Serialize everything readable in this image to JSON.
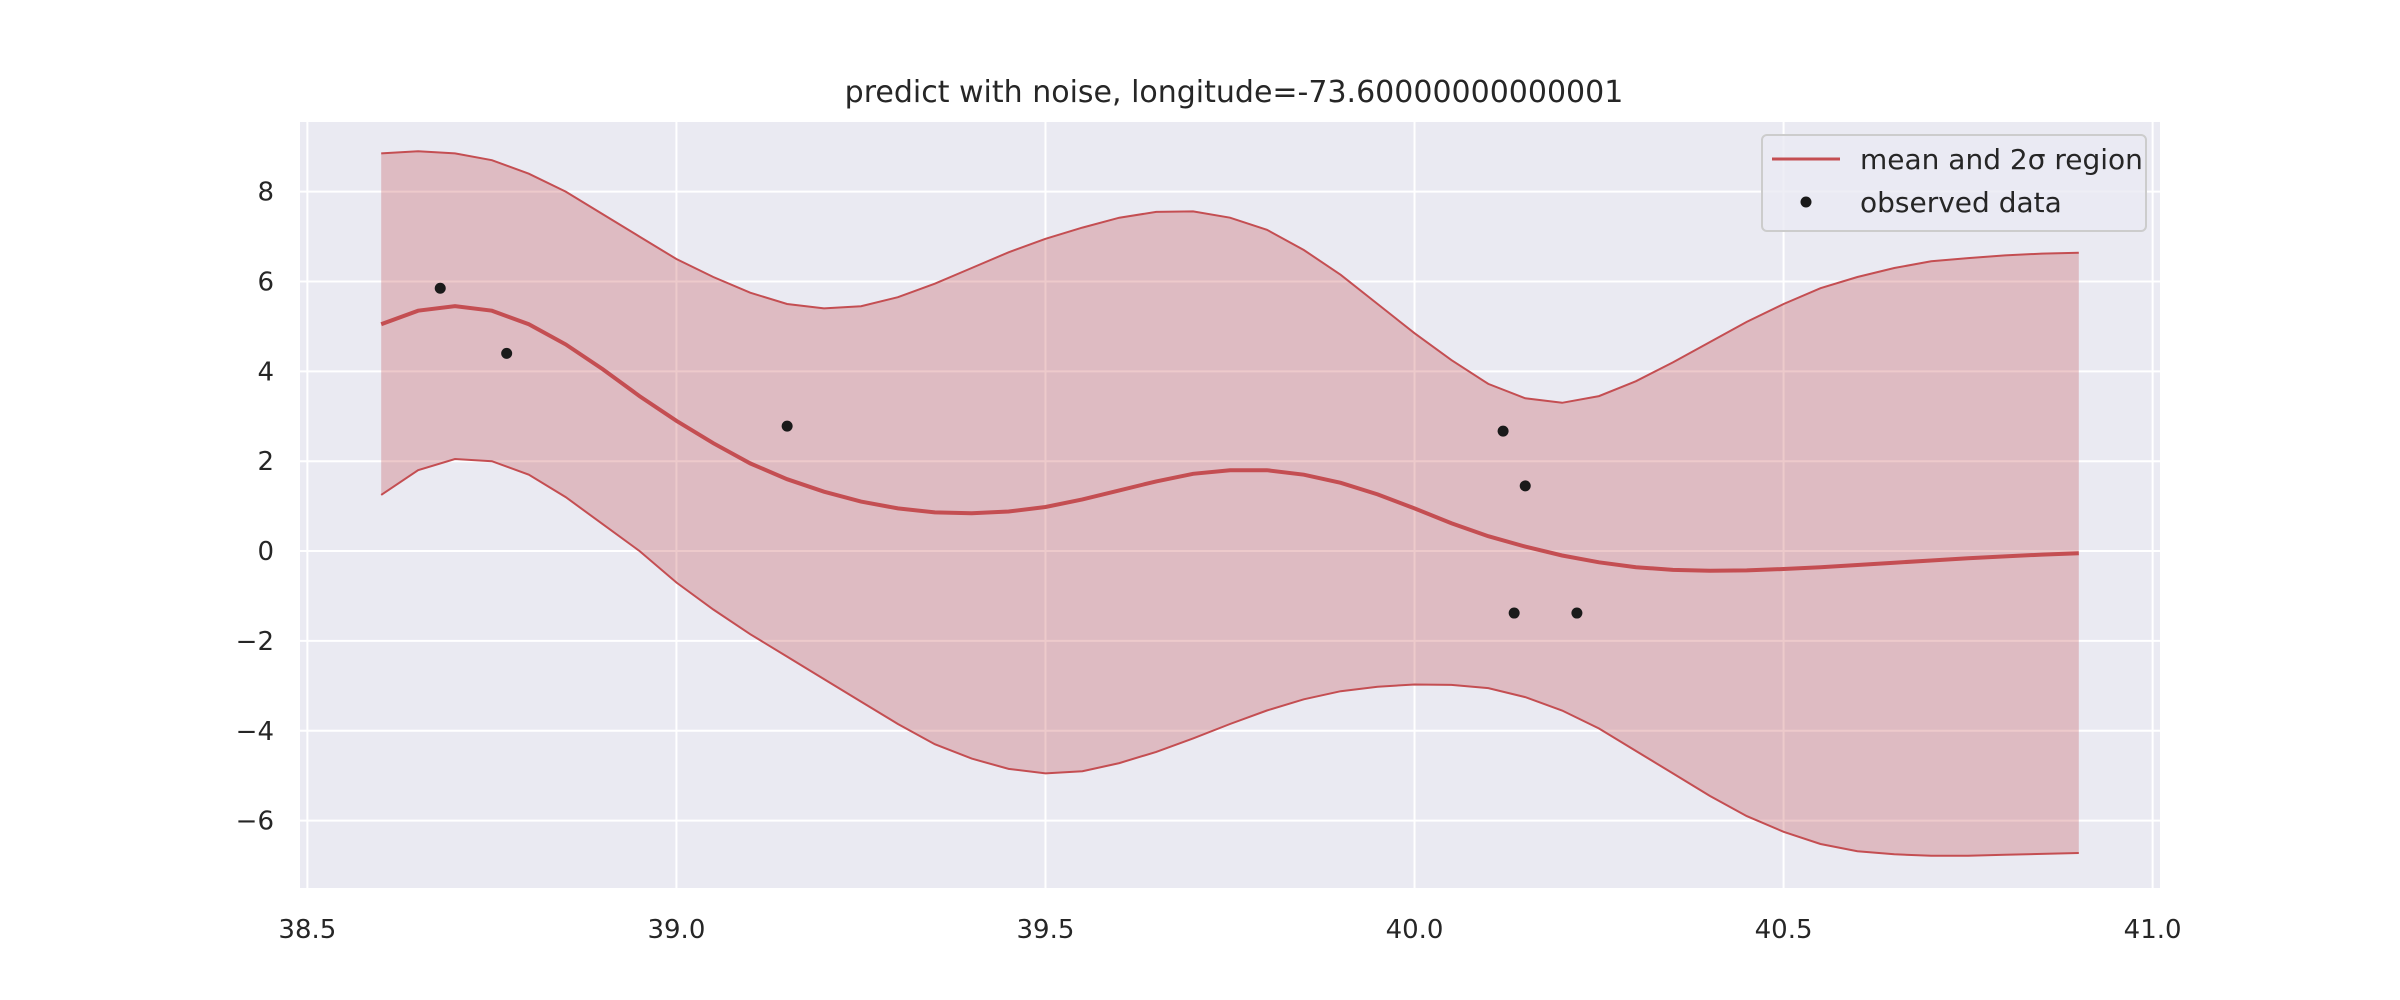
{
  "chart_data": {
    "type": "line",
    "title": "predict with noise, longitude=-73.60000000000001",
    "xlabel": "",
    "ylabel": "",
    "xlim": [
      38.49,
      41.01
    ],
    "ylim": [
      -7.5,
      9.55
    ],
    "x_ticks": [
      38.5,
      39.0,
      39.5,
      40.0,
      40.5,
      41.0
    ],
    "x_tick_labels": [
      "38.5",
      "39.0",
      "39.5",
      "40.0",
      "40.5",
      "41.0"
    ],
    "y_ticks": [
      -6,
      -4,
      -2,
      0,
      2,
      4,
      6,
      8
    ],
    "y_tick_labels": [
      "−6",
      "−4",
      "−2",
      "0",
      "2",
      "4",
      "6",
      "8"
    ],
    "grid": true,
    "legend_position": "top-right",
    "legend": [
      "mean and 2σ region",
      "observed data"
    ],
    "colors": {
      "mean": "#c44e52",
      "band_fill": "#c44e52",
      "band_alpha": 0.3,
      "points": "#1a1a1a",
      "axes_bg": "#eaeaf2",
      "grid": "#ffffff"
    },
    "series": [
      {
        "name": "mean and 2σ region",
        "kind": "line_with_band",
        "x": [
          38.6,
          38.65,
          38.7,
          38.75,
          38.8,
          38.85,
          38.9,
          38.95,
          39.0,
          39.05,
          39.1,
          39.15,
          39.2,
          39.25,
          39.3,
          39.35,
          39.4,
          39.45,
          39.5,
          39.55,
          39.6,
          39.65,
          39.7,
          39.75,
          39.8,
          39.85,
          39.9,
          39.95,
          40.0,
          40.05,
          40.1,
          40.15,
          40.2,
          40.25,
          40.3,
          40.35,
          40.4,
          40.45,
          40.5,
          40.55,
          40.6,
          40.65,
          40.7,
          40.75,
          40.8,
          40.85,
          40.9
        ],
        "mean": [
          5.05,
          5.35,
          5.45,
          5.35,
          5.05,
          4.6,
          4.05,
          3.45,
          2.9,
          2.4,
          1.95,
          1.6,
          1.32,
          1.1,
          0.95,
          0.86,
          0.84,
          0.88,
          0.98,
          1.15,
          1.35,
          1.55,
          1.72,
          1.8,
          1.8,
          1.7,
          1.52,
          1.26,
          0.95,
          0.62,
          0.33,
          0.1,
          -0.1,
          -0.25,
          -0.36,
          -0.42,
          -0.44,
          -0.43,
          -0.4,
          -0.36,
          -0.31,
          -0.26,
          -0.21,
          -0.16,
          -0.12,
          -0.08,
          -0.05
        ],
        "upper": [
          8.85,
          8.9,
          8.85,
          8.7,
          8.4,
          8.0,
          7.5,
          7.0,
          6.5,
          6.1,
          5.75,
          5.5,
          5.4,
          5.45,
          5.65,
          5.95,
          6.3,
          6.65,
          6.95,
          7.2,
          7.42,
          7.55,
          7.56,
          7.42,
          7.15,
          6.7,
          6.15,
          5.5,
          4.85,
          4.25,
          3.72,
          3.4,
          3.3,
          3.45,
          3.78,
          4.2,
          4.65,
          5.1,
          5.5,
          5.85,
          6.1,
          6.3,
          6.45,
          6.52,
          6.58,
          6.62,
          6.64
        ],
        "lower": [
          1.25,
          1.8,
          2.05,
          2.0,
          1.7,
          1.2,
          0.6,
          0.0,
          -0.7,
          -1.3,
          -1.85,
          -2.35,
          -2.85,
          -3.35,
          -3.85,
          -4.3,
          -4.62,
          -4.85,
          -4.95,
          -4.9,
          -4.72,
          -4.47,
          -4.17,
          -3.85,
          -3.55,
          -3.3,
          -3.12,
          -3.02,
          -2.97,
          -2.98,
          -3.05,
          -3.25,
          -3.55,
          -3.95,
          -4.45,
          -4.95,
          -5.45,
          -5.9,
          -6.25,
          -6.52,
          -6.68,
          -6.75,
          -6.78,
          -6.78,
          -6.76,
          -6.74,
          -6.72
        ]
      },
      {
        "name": "observed data",
        "kind": "scatter",
        "points": [
          {
            "x": 38.68,
            "y": 5.85
          },
          {
            "x": 38.77,
            "y": 4.4
          },
          {
            "x": 39.15,
            "y": 2.78
          },
          {
            "x": 40.12,
            "y": 2.67
          },
          {
            "x": 40.15,
            "y": 1.45
          },
          {
            "x": 40.135,
            "y": -1.38
          },
          {
            "x": 40.22,
            "y": -1.38
          }
        ]
      }
    ]
  }
}
